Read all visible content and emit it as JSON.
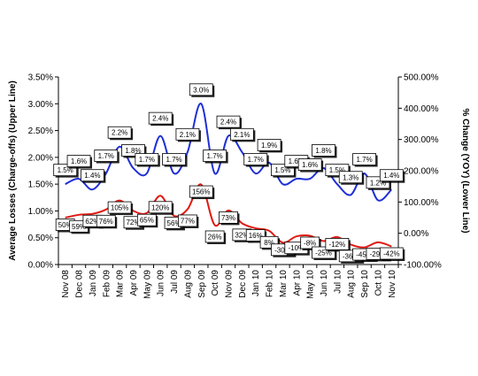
{
  "chart_data": {
    "type": "line",
    "title": "",
    "categories": [
      "Nov 08",
      "Dec 08",
      "Jan 09",
      "Feb 09",
      "Mar 09",
      "Apr 09",
      "May 09",
      "Jun 09",
      "Jul 09",
      "Aug 09",
      "Sep 09",
      "Oct 09",
      "Nov 09",
      "Dec 09",
      "Jan 10",
      "Feb 10",
      "Mar 10",
      "Apr 10",
      "May 10",
      "Jun 10",
      "Jul 10",
      "Aug 10",
      "Sep 10",
      "Oct 10",
      "Nov 10"
    ],
    "y_left": {
      "label": "Average Losses (Charge-offs) (Upper Line)",
      "ticks": [
        "0.00%",
        "0.50%",
        "1.00%",
        "1.50%",
        "2.00%",
        "2.50%",
        "3.00%",
        "3.50%"
      ],
      "range": [
        0,
        3.5
      ]
    },
    "y_right": {
      "label": "% Change (YOY) (Lower Line)",
      "ticks": [
        "-100.00%",
        "0.00%",
        "100.00%",
        "200.00%",
        "300.00%",
        "400.00%",
        "500.00%"
      ],
      "range": [
        -100,
        500
      ]
    },
    "series": [
      {
        "axis": "left",
        "color": "#1f2fd6",
        "values": [
          1.5,
          1.6,
          1.4,
          1.7,
          2.2,
          1.8,
          1.7,
          2.4,
          1.7,
          2.1,
          3.0,
          1.7,
          2.4,
          2.1,
          1.7,
          1.9,
          1.5,
          1.6,
          1.6,
          1.8,
          1.5,
          1.3,
          1.7,
          1.2,
          1.4
        ],
        "labels": [
          "1.5%",
          "1.6%",
          "1.4%",
          "1.7%",
          "2.2%",
          "1.8%",
          "1.7%",
          "2.4%",
          "1.7%",
          "2.1%",
          "3.0%",
          "1.7%",
          "2.4%",
          "2.1%",
          "1.7%",
          "1.9%",
          "1.5%",
          "1.6%",
          "1.6%",
          "1.8%",
          "1.5%",
          "1.3%",
          "1.7%",
          "1.2%",
          "1.4%"
        ]
      },
      {
        "axis": "right",
        "color": "#e01a12",
        "values": [
          50,
          59,
          62,
          76,
          105,
          72,
          65,
          120,
          56,
          77,
          156,
          26,
          73,
          32,
          16,
          8,
          -30,
          -10,
          -8,
          -25,
          -12,
          -36,
          -45,
          -29,
          -42
        ],
        "labels": [
          "50%",
          "59%",
          "62%",
          "76%",
          "105%",
          "72%",
          "65%",
          "120%",
          "56%",
          "77%",
          "156%",
          "26%",
          "73%",
          "32%",
          "16%",
          "8%",
          "-30%",
          "-10%",
          "-8%",
          "-25%",
          "-12%",
          "-36%",
          "-45%",
          "-29%",
          "-42%"
        ]
      }
    ],
    "grid": false,
    "legend": "none"
  }
}
